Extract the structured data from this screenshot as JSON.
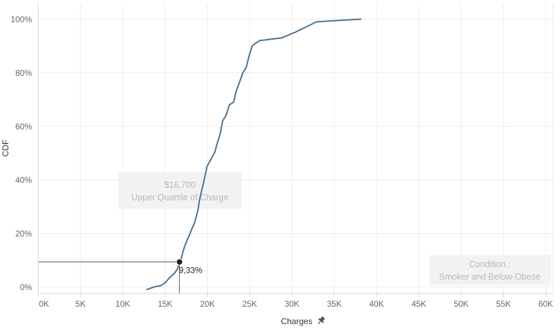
{
  "chart_data": {
    "type": "line",
    "xlabel": "Charges",
    "ylabel": "CDF",
    "xlim": [
      0,
      60000
    ],
    "ylim": [
      0,
      1.0
    ],
    "x_ticks": [
      0,
      5000,
      10000,
      15000,
      20000,
      25000,
      30000,
      35000,
      40000,
      45000,
      50000,
      55000,
      60000
    ],
    "x_tick_labels": [
      "0K",
      "5K",
      "10K",
      "15K",
      "20K",
      "25K",
      "30K",
      "35K",
      "40K",
      "45K",
      "50K",
      "55K",
      "60K"
    ],
    "y_ticks": [
      0,
      0.2,
      0.4,
      0.6,
      0.8,
      1.0
    ],
    "y_tick_labels": [
      "0%",
      "20%",
      "40%",
      "60%",
      "80%",
      "100%"
    ],
    "grid": true,
    "line_color": "#4e7190",
    "series": [
      {
        "x": [
          12800,
          13700,
          14500,
          15000,
          15400,
          15900,
          16200,
          16500,
          16700,
          16900,
          17100,
          17300,
          17600,
          17900,
          18200,
          18500,
          18700,
          18900,
          19100,
          19400,
          19700,
          19950,
          20300,
          20650,
          20900,
          21100,
          21300,
          21500,
          21800,
          22200,
          22600,
          23100,
          23400,
          23800,
          24200,
          24600,
          24900,
          25300,
          25700,
          26200,
          27500,
          28800,
          30300,
          31600,
          32900,
          35500,
          38200
        ],
        "y": [
          -0.01,
          0.0,
          0.005,
          0.015,
          0.03,
          0.045,
          0.055,
          0.07,
          0.0933,
          0.105,
          0.13,
          0.15,
          0.175,
          0.195,
          0.22,
          0.24,
          0.265,
          0.29,
          0.33,
          0.37,
          0.41,
          0.45,
          0.47,
          0.49,
          0.505,
          0.53,
          0.55,
          0.57,
          0.62,
          0.64,
          0.68,
          0.69,
          0.73,
          0.765,
          0.8,
          0.82,
          0.86,
          0.9,
          0.91,
          0.92,
          0.925,
          0.93,
          0.95,
          0.97,
          0.99,
          0.995,
          1.0
        ]
      }
    ],
    "highlight": {
      "x": 16700,
      "y": 0.0933,
      "label": "9,33%",
      "marker_color": "#222222",
      "ref_line_color": "#555555"
    },
    "annotations": [
      {
        "line1": "$16,700",
        "line2": "Upper Quartile of Charge"
      },
      {
        "line1": "Condition :",
        "line2": "Smoker and Below-Obese"
      }
    ],
    "annotation_bg": "#f2f2f2"
  }
}
